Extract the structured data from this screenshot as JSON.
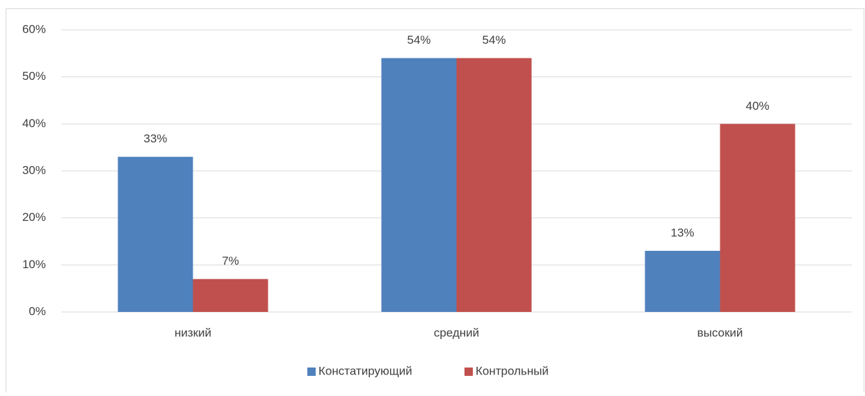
{
  "chart_data": {
    "type": "bar",
    "categories": [
      "низкий",
      "средний",
      "высокий"
    ],
    "series": [
      {
        "name": "Констатирующий",
        "color": "#4f81bd",
        "values": [
          33,
          54,
          13
        ],
        "value_labels": [
          "33%",
          "54%",
          "13%"
        ]
      },
      {
        "name": "Контрольный",
        "color": "#c0504d",
        "values": [
          7,
          54,
          40
        ],
        "value_labels": [
          "7%",
          "54%",
          "40%"
        ]
      }
    ],
    "ylim": [
      0,
      60
    ],
    "yticks": [
      {
        "value": 0,
        "label": "0%"
      },
      {
        "value": 10,
        "label": "10%"
      },
      {
        "value": 20,
        "label": "20%"
      },
      {
        "value": 30,
        "label": "30%"
      },
      {
        "value": 40,
        "label": "40%"
      },
      {
        "value": 50,
        "label": "50%"
      },
      {
        "value": 60,
        "label": "60%"
      }
    ],
    "grid": true,
    "legend": "bottom"
  }
}
